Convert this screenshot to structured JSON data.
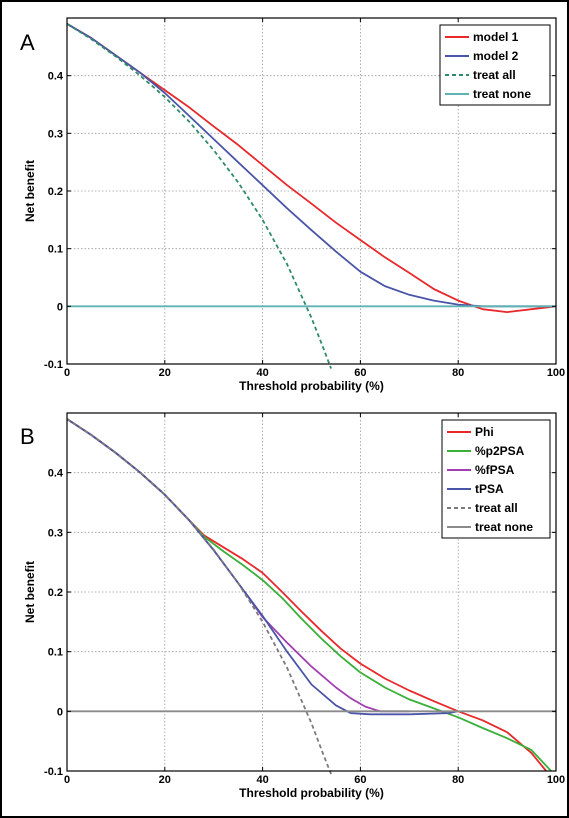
{
  "chart_data": [
    {
      "type": "line",
      "panel_label": "A",
      "xlabel": "Threshold probability (%)",
      "ylabel": "Net benefit",
      "xlim": [
        0,
        100
      ],
      "ylim": [
        -0.1,
        0.5
      ],
      "xticks": [
        "0",
        "20",
        "40",
        "60",
        "80",
        "100"
      ],
      "yticks": [
        "-0.1",
        "0",
        "0.1",
        "0.2",
        "0.3",
        "0.4"
      ],
      "grid": true,
      "legend_position": "top-right",
      "series": [
        {
          "name": "model 1",
          "color": "#e8282a",
          "dash": false,
          "points": [
            [
              0,
              0.49
            ],
            [
              5,
              0.465
            ],
            [
              10,
              0.435
            ],
            [
              15,
              0.405
            ],
            [
              20,
              0.375
            ],
            [
              25,
              0.345
            ],
            [
              30,
              0.312
            ],
            [
              35,
              0.28
            ],
            [
              40,
              0.245
            ],
            [
              45,
              0.21
            ],
            [
              50,
              0.178
            ],
            [
              55,
              0.145
            ],
            [
              60,
              0.115
            ],
            [
              65,
              0.085
            ],
            [
              70,
              0.058
            ],
            [
              75,
              0.03
            ],
            [
              80,
              0.01
            ],
            [
              85,
              -0.005
            ],
            [
              90,
              -0.01
            ],
            [
              95,
              -0.005
            ],
            [
              100,
              0
            ]
          ]
        },
        {
          "name": "model 2",
          "color": "#4a55a8",
          "dash": false,
          "points": [
            [
              0,
              0.49
            ],
            [
              5,
              0.465
            ],
            [
              10,
              0.435
            ],
            [
              15,
              0.405
            ],
            [
              20,
              0.37
            ],
            [
              25,
              0.33
            ],
            [
              30,
              0.29
            ],
            [
              35,
              0.25
            ],
            [
              40,
              0.21
            ],
            [
              45,
              0.17
            ],
            [
              50,
              0.132
            ],
            [
              55,
              0.095
            ],
            [
              60,
              0.06
            ],
            [
              65,
              0.035
            ],
            [
              70,
              0.02
            ],
            [
              75,
              0.01
            ],
            [
              80,
              0.003
            ],
            [
              85,
              0
            ],
            [
              90,
              0
            ],
            [
              95,
              0
            ],
            [
              100,
              0
            ]
          ]
        },
        {
          "name": "treat all",
          "color": "#2e8b67",
          "dash": true,
          "points": [
            [
              0,
              0.49
            ],
            [
              5,
              0.463
            ],
            [
              10,
              0.433
            ],
            [
              15,
              0.4
            ],
            [
              20,
              0.363
            ],
            [
              25,
              0.32
            ],
            [
              30,
              0.271
            ],
            [
              35,
              0.215
            ],
            [
              40,
              0.15
            ],
            [
              45,
              0.073
            ],
            [
              50,
              -0.02
            ],
            [
              52.5,
              -0.074
            ],
            [
              54,
              -0.108
            ]
          ]
        },
        {
          "name": "treat none",
          "color": "#5fb3b3",
          "dash": false,
          "points": [
            [
              0,
              0
            ],
            [
              100,
              0
            ]
          ]
        }
      ]
    },
    {
      "type": "line",
      "panel_label": "B",
      "xlabel": "Threshold probability (%)",
      "ylabel": "Net benefit",
      "xlim": [
        0,
        100
      ],
      "ylim": [
        -0.1,
        0.5
      ],
      "xticks": [
        "0",
        "20",
        "40",
        "60",
        "80",
        "100"
      ],
      "yticks": [
        "-0.1",
        "0",
        "0.1",
        "0.2",
        "0.3",
        "0.4"
      ],
      "grid": true,
      "legend_position": "top-right",
      "series": [
        {
          "name": "Phi",
          "color": "#e8282a",
          "dash": false,
          "points": [
            [
              0,
              0.49
            ],
            [
              5,
              0.463
            ],
            [
              10,
              0.433
            ],
            [
              15,
              0.4
            ],
            [
              20,
              0.363
            ],
            [
              25,
              0.32
            ],
            [
              28,
              0.295
            ],
            [
              32,
              0.275
            ],
            [
              36,
              0.255
            ],
            [
              40,
              0.232
            ],
            [
              44,
              0.2
            ],
            [
              48,
              0.167
            ],
            [
              52,
              0.135
            ],
            [
              56,
              0.105
            ],
            [
              60,
              0.08
            ],
            [
              65,
              0.055
            ],
            [
              70,
              0.035
            ],
            [
              75,
              0.017
            ],
            [
              80,
              0
            ],
            [
              85,
              -0.015
            ],
            [
              90,
              -0.035
            ],
            [
              95,
              -0.07
            ],
            [
              98,
              -0.1
            ]
          ]
        },
        {
          "name": "%p2PSA",
          "color": "#3aaf3a",
          "dash": false,
          "points": [
            [
              0,
              0.49
            ],
            [
              5,
              0.463
            ],
            [
              10,
              0.433
            ],
            [
              15,
              0.4
            ],
            [
              20,
              0.363
            ],
            [
              25,
              0.32
            ],
            [
              28,
              0.293
            ],
            [
              32,
              0.268
            ],
            [
              36,
              0.245
            ],
            [
              40,
              0.22
            ],
            [
              44,
              0.19
            ],
            [
              48,
              0.155
            ],
            [
              52,
              0.122
            ],
            [
              56,
              0.092
            ],
            [
              60,
              0.065
            ],
            [
              65,
              0.04
            ],
            [
              70,
              0.02
            ],
            [
              75,
              0.005
            ],
            [
              80,
              -0.01
            ],
            [
              85,
              -0.028
            ],
            [
              90,
              -0.045
            ],
            [
              95,
              -0.065
            ],
            [
              99,
              -0.1
            ]
          ]
        },
        {
          "name": "%fPSA",
          "color": "#a040b0",
          "dash": false,
          "points": [
            [
              0,
              0.49
            ],
            [
              5,
              0.463
            ],
            [
              10,
              0.433
            ],
            [
              15,
              0.4
            ],
            [
              20,
              0.363
            ],
            [
              25,
              0.32
            ],
            [
              30,
              0.27
            ],
            [
              35,
              0.215
            ],
            [
              40,
              0.158
            ],
            [
              45,
              0.115
            ],
            [
              50,
              0.075
            ],
            [
              55,
              0.04
            ],
            [
              58,
              0.022
            ],
            [
              61,
              0.008
            ],
            [
              64,
              0
            ],
            [
              70,
              0
            ]
          ]
        },
        {
          "name": "tPSA",
          "color": "#4a55a8",
          "dash": false,
          "points": [
            [
              0,
              0.49
            ],
            [
              5,
              0.463
            ],
            [
              10,
              0.433
            ],
            [
              15,
              0.4
            ],
            [
              20,
              0.363
            ],
            [
              25,
              0.32
            ],
            [
              30,
              0.27
            ],
            [
              35,
              0.215
            ],
            [
              40,
              0.16
            ],
            [
              45,
              0.1
            ],
            [
              50,
              0.045
            ],
            [
              55,
              0.01
            ],
            [
              58,
              -0.003
            ],
            [
              62,
              -0.005
            ],
            [
              70,
              -0.005
            ],
            [
              78,
              -0.003
            ],
            [
              80,
              0
            ]
          ]
        },
        {
          "name": "treat all",
          "color": "#7a7a7a",
          "dash": true,
          "points": [
            [
              0,
              0.49
            ],
            [
              5,
              0.463
            ],
            [
              10,
              0.433
            ],
            [
              15,
              0.4
            ],
            [
              20,
              0.363
            ],
            [
              25,
              0.32
            ],
            [
              30,
              0.271
            ],
            [
              35,
              0.215
            ],
            [
              40,
              0.15
            ],
            [
              45,
              0.073
            ],
            [
              50,
              -0.02
            ],
            [
              52.5,
              -0.074
            ],
            [
              54,
              -0.105
            ]
          ]
        },
        {
          "name": "treat none",
          "color": "#8a8a8a",
          "dash": false,
          "points": [
            [
              0,
              0
            ],
            [
              100,
              0
            ]
          ]
        }
      ]
    }
  ]
}
